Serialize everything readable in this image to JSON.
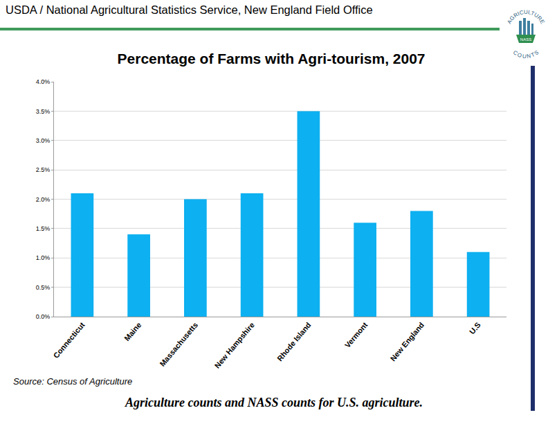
{
  "header": "USDA / National Agricultural Statistics Service, New England Field Office",
  "logo": {
    "top": "AGRICULTURE",
    "bottom": "COUNTS",
    "center": "NASS"
  },
  "source": "Source: Census of Agriculture",
  "footer": "Agriculture counts and NASS counts for U.S. agriculture.",
  "chart_data": {
    "type": "bar",
    "title": "Percentage of Farms with Agri-tourism, 2007",
    "categories": [
      "Connecticut",
      "Maine",
      "Massachusetts",
      "New Hampshire",
      "Rhode Island",
      "Vermont",
      "New England",
      "U.S"
    ],
    "values": [
      2.1,
      1.4,
      2.0,
      2.1,
      3.5,
      1.6,
      1.8,
      1.1
    ],
    "color": "#0db0f0",
    "ylim": [
      0,
      4
    ],
    "yticks": [
      {
        "value": 0,
        "label": "0.0%"
      },
      {
        "value": 0.5,
        "label": "0.5%"
      },
      {
        "value": 1,
        "label": "1.0%"
      },
      {
        "value": 1.5,
        "label": "1.5%"
      },
      {
        "value": 2,
        "label": "2.0%"
      },
      {
        "value": 2.5,
        "label": "2.5%"
      },
      {
        "value": 3,
        "label": "3.0%"
      },
      {
        "value": 3.5,
        "label": "3.5%"
      },
      {
        "value": 4,
        "label": "4.0%"
      }
    ],
    "grid": true
  }
}
